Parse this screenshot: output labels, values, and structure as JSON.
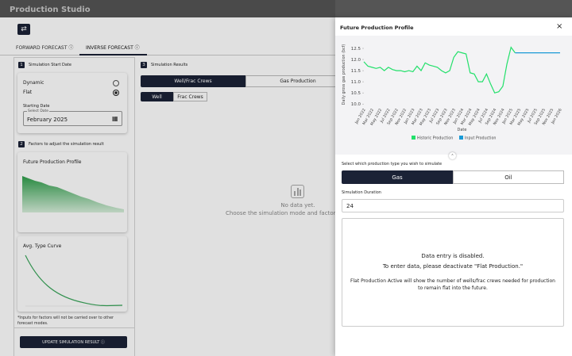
{
  "header": {
    "title": "Production Studio"
  },
  "tabs": [
    "FORWARD FORECAST",
    "INVERSE FORECAST"
  ],
  "step1": {
    "number": "1",
    "title": "Simulation Start Date",
    "options": [
      "Dynamic",
      "Flat"
    ],
    "starting_date_label": "Starting Date",
    "select_date_label": "Select Date",
    "date_value": "February 2025"
  },
  "step2": {
    "number": "2",
    "title": "Factors to adjust the simulation result",
    "cards": [
      "Future Production Profile",
      "Avg. Type Curve"
    ],
    "note": "*Inputs for factors will not be carried over to other forecast modes.",
    "button": "UPDATE SIMULATION RESULT"
  },
  "step3": {
    "number": "3",
    "title": "Simulation Results",
    "toggle": [
      "Well/Frac Crews",
      "Gas Production"
    ],
    "subtoggle": [
      "Well",
      "Frac Crews"
    ],
    "empty_title": "No data yet.",
    "empty_text": "Choose the simulation mode and factors f"
  },
  "modal": {
    "title": "Future Production Profile",
    "production_type_label": "Select which production type you wish to simulate",
    "production_types": [
      "Gas",
      "Oil"
    ],
    "duration_label": "Simulation Duration",
    "duration_value": "24",
    "disabled_title": "Data entry is disabled.",
    "disabled_text": "To enter data, please deactivate \"Flat Production.\"",
    "disabled_note": "Flat Production Active will show the number of wells/frac crews needed for production to remain flat into the future."
  },
  "chart_data": {
    "type": "line",
    "y_label": "Daily gross gas production (bcf)",
    "x_label": "Date",
    "categories": [
      "Jan 2022",
      null,
      "Mar 2022",
      null,
      "May 2022",
      null,
      "Jul 2022",
      null,
      "Sep 2022",
      null,
      "Nov 2022",
      null,
      "Jan 2023",
      null,
      "Mar 2023",
      null,
      "May 2023",
      null,
      "Jul 2023",
      null,
      "Sep 2023",
      null,
      "Nov 2023",
      null,
      "Jan 2024",
      null,
      "Mar 2024",
      null,
      "May 2024",
      null,
      "Jul 2024",
      null,
      "Sep 2024",
      null,
      "Nov 2024",
      null,
      "Jan 2025",
      null,
      "Mar 2025",
      null,
      "May 2025",
      null,
      "Jul 2025",
      null,
      "Sep 2025",
      null,
      "Nov 2025",
      null,
      "Jan 2026"
    ],
    "series": [
      {
        "name": "Historic Production",
        "color": "#22e06a",
        "values": [
          11.9,
          11.7,
          11.65,
          11.6,
          11.65,
          11.5,
          11.65,
          11.55,
          11.5,
          11.5,
          11.45,
          11.5,
          11.45,
          11.7,
          11.5,
          11.85,
          11.75,
          11.7,
          11.65,
          11.5,
          11.4,
          11.5,
          12.1,
          12.35,
          12.3,
          12.25,
          11.4,
          11.35,
          11.0,
          11.0,
          11.35,
          10.9,
          10.5,
          10.55,
          10.8,
          11.8,
          12.55,
          12.3,
          null,
          null,
          null,
          null,
          null,
          null,
          null,
          null,
          null,
          null,
          null
        ]
      },
      {
        "name": "Input Production",
        "color": "#1a9ad6",
        "values": [
          null,
          null,
          null,
          null,
          null,
          null,
          null,
          null,
          null,
          null,
          null,
          null,
          null,
          null,
          null,
          null,
          null,
          null,
          null,
          null,
          null,
          null,
          null,
          null,
          null,
          null,
          null,
          null,
          null,
          null,
          null,
          null,
          null,
          null,
          null,
          null,
          null,
          12.3,
          12.3,
          12.3,
          12.3,
          12.3,
          12.3,
          12.3,
          12.3,
          12.3,
          12.3,
          12.3,
          12.3
        ]
      }
    ],
    "ylim": [
      9.9,
      12.75
    ],
    "yticks": [
      {
        "value": 10,
        "label": "10.0"
      },
      10.5,
      {
        "value": 11,
        "label": "11.0"
      },
      11.5,
      {
        "value": 12,
        "label": "12.0"
      },
      12.5
    ]
  }
}
